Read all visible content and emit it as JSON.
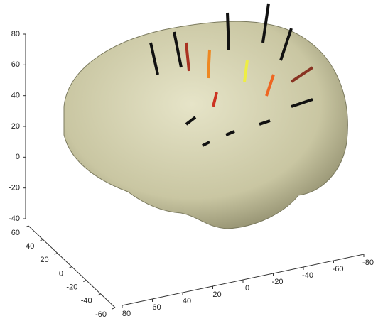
{
  "chart_data": {
    "type": "surface3d",
    "xlim": [
      80,
      -80
    ],
    "xticks": [
      80,
      60,
      40,
      20,
      0,
      -20,
      -40,
      -60,
      -80
    ],
    "ylim": [
      60,
      -60
    ],
    "yticks": [
      60,
      40,
      20,
      0,
      -20,
      -40,
      -60
    ],
    "zlim": [
      -40,
      80
    ],
    "zticks": [
      80,
      60,
      40,
      20,
      0,
      -20,
      -40
    ]
  }
}
